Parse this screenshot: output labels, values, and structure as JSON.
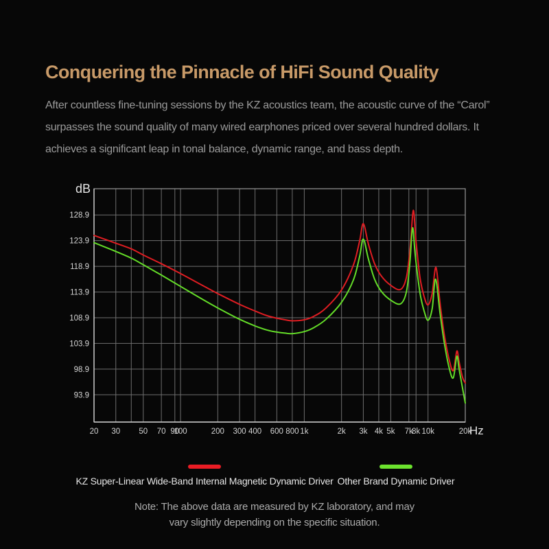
{
  "header": {
    "title": "Conquering the Pinnacle of HiFi Sound Quality",
    "title_color": "#c89a68",
    "paragraph": "After countless fine-tuning sessions by the KZ acoustics team, the acoustic curve of the “Carol”\nsurpasses the sound quality of many wired earphones priced over several hundred dollars. It\nachieves a significant leap in tonal balance, dynamic range, and bass depth."
  },
  "chart_data": {
    "type": "line",
    "title": "",
    "xlabel": "Hz",
    "ylabel": "dB",
    "x_scale": "log",
    "x_range": [
      20,
      20000
    ],
    "y_range": [
      88.6,
      134.0
    ],
    "grid": true,
    "grid_color": "#6f6f6f",
    "border_color": "#9a9a9a",
    "axis_line_color": "#cfcfcf",
    "axis_text_color": "#d6d6d6",
    "unit_text_color": "#e6e6e6",
    "y_ticks": [
      "128.9",
      "123.9",
      "118.9",
      "113.9",
      "108.9",
      "103.9",
      "98.9",
      "93.9"
    ],
    "y_tick_values": [
      128.9,
      123.9,
      118.9,
      113.9,
      108.9,
      103.9,
      98.9,
      93.9
    ],
    "x_ticks": [
      "20",
      "30",
      "50",
      "70",
      "90",
      "100",
      "200",
      "300",
      "400",
      "600",
      "800",
      "1k",
      "2k",
      "3k",
      "4k",
      "5k",
      "7k",
      "8k",
      "10k",
      "20k"
    ],
    "x_tick_values": [
      20,
      30,
      50,
      70,
      90,
      100,
      200,
      300,
      400,
      600,
      800,
      1000,
      2000,
      3000,
      4000,
      5000,
      7000,
      8000,
      10000,
      20000
    ],
    "x_grid_values": [
      20,
      30,
      40,
      50,
      70,
      90,
      100,
      200,
      300,
      400,
      600,
      800,
      1000,
      2000,
      3000,
      4000,
      5000,
      7000,
      8000,
      10000,
      20000
    ],
    "legend_position": "bottom",
    "series": [
      {
        "name": "KZ Super-Linear Wide-Band Internal Magnetic Dynamic Driver",
        "color": "#e01d22",
        "points": [
          [
            20,
            124.9
          ],
          [
            30,
            123.4
          ],
          [
            40,
            122.3
          ],
          [
            50,
            121.1
          ],
          [
            70,
            119.4
          ],
          [
            100,
            117.5
          ],
          [
            150,
            115.2
          ],
          [
            200,
            113.6
          ],
          [
            300,
            111.5
          ],
          [
            400,
            110.2
          ],
          [
            500,
            109.3
          ],
          [
            600,
            108.8
          ],
          [
            700,
            108.5
          ],
          [
            800,
            108.3
          ],
          [
            1000,
            108.5
          ],
          [
            1200,
            109.2
          ],
          [
            1500,
            110.8
          ],
          [
            2000,
            114.3
          ],
          [
            2500,
            119.2
          ],
          [
            2800,
            123.8
          ],
          [
            3000,
            127.2
          ],
          [
            3300,
            123.2
          ],
          [
            3700,
            119.4
          ],
          [
            4200,
            117.0
          ],
          [
            5000,
            115.2
          ],
          [
            6000,
            114.4
          ],
          [
            6700,
            116.8
          ],
          [
            7200,
            122.8
          ],
          [
            7600,
            129.8
          ],
          [
            8000,
            123.8
          ],
          [
            8600,
            116.8
          ],
          [
            9300,
            113.0
          ],
          [
            10000,
            111.4
          ],
          [
            10800,
            113.6
          ],
          [
            11600,
            118.7
          ],
          [
            12500,
            111.8
          ],
          [
            13500,
            105.8
          ],
          [
            14800,
            100.8
          ],
          [
            16000,
            98.6
          ],
          [
            17100,
            102.4
          ],
          [
            17800,
            100.4
          ],
          [
            19000,
            97.3
          ],
          [
            20000,
            96.2
          ]
        ]
      },
      {
        "name": "Other Brand Dynamic Driver",
        "color": "#64dd28",
        "points": [
          [
            20,
            123.5
          ],
          [
            30,
            121.8
          ],
          [
            40,
            120.5
          ],
          [
            50,
            119.2
          ],
          [
            70,
            117.2
          ],
          [
            100,
            115.0
          ],
          [
            150,
            112.5
          ],
          [
            200,
            110.8
          ],
          [
            300,
            108.6
          ],
          [
            400,
            107.3
          ],
          [
            500,
            106.5
          ],
          [
            600,
            106.1
          ],
          [
            700,
            105.9
          ],
          [
            800,
            105.8
          ],
          [
            1000,
            106.2
          ],
          [
            1200,
            107.0
          ],
          [
            1500,
            108.6
          ],
          [
            2000,
            111.9
          ],
          [
            2500,
            116.3
          ],
          [
            2800,
            120.8
          ],
          [
            3000,
            124.2
          ],
          [
            3300,
            120.3
          ],
          [
            3700,
            116.4
          ],
          [
            4200,
            114.0
          ],
          [
            5000,
            112.3
          ],
          [
            6000,
            111.6
          ],
          [
            6700,
            114.0
          ],
          [
            7150,
            119.8
          ],
          [
            7500,
            126.4
          ],
          [
            7900,
            120.8
          ],
          [
            8600,
            113.8
          ],
          [
            9300,
            110.2
          ],
          [
            10000,
            108.4
          ],
          [
            10800,
            110.6
          ],
          [
            11500,
            116.4
          ],
          [
            12500,
            109.8
          ],
          [
            13500,
            104.2
          ],
          [
            14800,
            99.2
          ],
          [
            16000,
            97.2
          ],
          [
            17100,
            101.4
          ],
          [
            17800,
            99.0
          ],
          [
            19000,
            95.2
          ],
          [
            20000,
            92.3
          ]
        ]
      }
    ]
  },
  "legend": {
    "items": [
      {
        "label": "KZ Super-Linear Wide-Band Internal Magnetic Dynamic Driver",
        "color": "#ea1c24"
      },
      {
        "label": "Other Brand Dynamic Driver",
        "color": "#6ce32e"
      }
    ]
  },
  "note": {
    "line1": "Note: The above data are measured by KZ laboratory, and may",
    "line2": "vary slightly depending on the specific situation."
  }
}
